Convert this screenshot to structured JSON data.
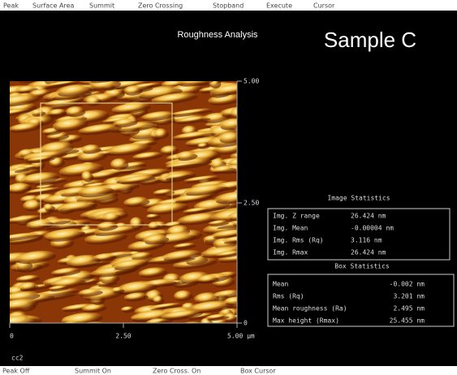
{
  "menu": [
    "Peak",
    "Surface Area",
    "Summit",
    "Zero Crossing",
    "Stopband",
    "Execute",
    "Cursor"
  ],
  "title": "Roughness Analysis",
  "sample": "Sample C",
  "y_axis": [
    "5.00",
    "2.50",
    "0"
  ],
  "x_axis": [
    "0",
    "2.50",
    "5.00 µm"
  ],
  "image_statistics": {
    "title": "Image Statistics",
    "rows": [
      [
        "Img. Z range",
        "26.424 nm"
      ],
      [
        "Img. Mean",
        "-0.00004 nm"
      ],
      [
        "Img. Rms (Rq)",
        "3.116 nm"
      ],
      [
        "Img. Rmax",
        "26.424 nm"
      ]
    ]
  },
  "box_statistics": {
    "title": "Box Statistics",
    "rows": [
      [
        "Mean",
        "-0.002 nm"
      ],
      [
        "Rms (Rq)",
        "3.201 nm"
      ],
      [
        "Mean roughness (Ra)",
        "2.495 nm"
      ],
      [
        "Max height (Rmax)",
        "25.455 nm"
      ]
    ]
  },
  "footer": "cc2",
  "status": [
    "Peak Off",
    "Summit On",
    "Zero Cross. On",
    "Box Cursor"
  ]
}
